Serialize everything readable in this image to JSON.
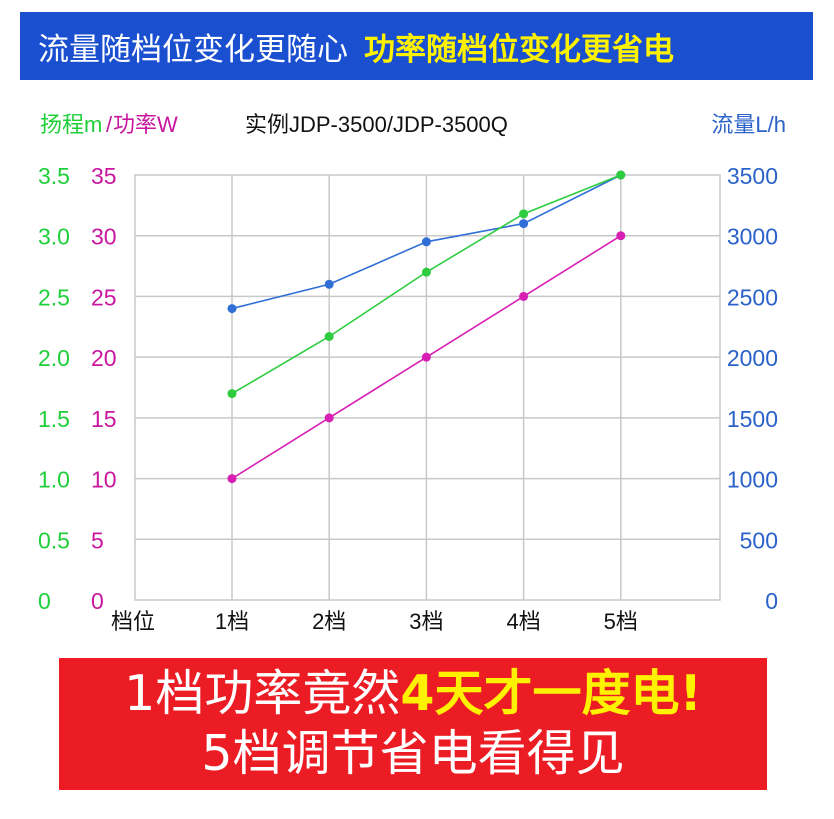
{
  "header": {
    "left_text": "流量随档位变化更随心",
    "right_text": "功率随档位变化更省电"
  },
  "chart_data": {
    "type": "line",
    "title": "实例JDP-3500/JDP-3500Q",
    "left_label_head": "扬程m",
    "left_label_sep": "/",
    "left_label_power": "功率W",
    "right_label": "流量L/h",
    "xlabel": "档位",
    "categories": [
      "1档",
      "2档",
      "3档",
      "4档",
      "5档"
    ],
    "head_ticks": [
      "0",
      "0.5",
      "1.0",
      "1.5",
      "2.0",
      "2.5",
      "3.0",
      "3.5"
    ],
    "power_ticks": [
      "0",
      "5",
      "10",
      "15",
      "20",
      "25",
      "30",
      "35"
    ],
    "flow_ticks": [
      "0",
      "500",
      "1000",
      "1500",
      "2000",
      "2500",
      "3000",
      "3500"
    ],
    "ylim_head": [
      0,
      3.5
    ],
    "ylim_power": [
      0,
      35
    ],
    "ylim_flow": [
      0,
      3500
    ],
    "grid": true,
    "series": [
      {
        "axis": "flow",
        "color": "#2f6fd6",
        "values": [
          2400,
          2600,
          2950,
          3100,
          3500
        ]
      },
      {
        "axis": "head",
        "color": "#2ecc3f",
        "values": [
          1.7,
          2.17,
          2.7,
          3.18,
          3.5
        ]
      },
      {
        "axis": "power",
        "color": "#d81fb4",
        "values": [
          10,
          15,
          20,
          25,
          30
        ]
      }
    ],
    "colors": {
      "head": "#1fcf3a",
      "power": "#c8179e",
      "flow": "#2b62c9",
      "text": "#111111",
      "grid": "#c8c8c8"
    }
  },
  "footer": {
    "line1_prefix": "1档功率竟然",
    "line1_highlight": "4天才一度电!",
    "line2": "5档调节省电看得见"
  }
}
